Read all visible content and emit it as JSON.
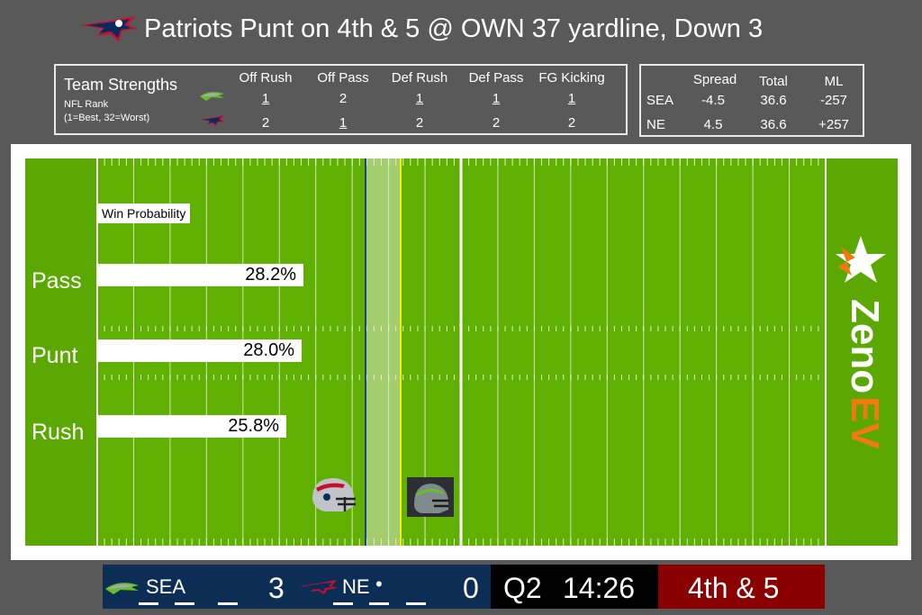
{
  "header": {
    "title": "Patriots Punt on 4th & 5 @ OWN 37 yardline, Down 3",
    "logo_icon": "patriots-logo"
  },
  "team_strengths": {
    "title": "Team Strengths",
    "subtitle_line1": "NFL Rank",
    "subtitle_line2": "(1=Best, 32=Worst)",
    "columns": [
      "Off Rush",
      "Off Pass",
      "Def Rush",
      "Def Pass",
      "FG Kicking"
    ],
    "rows": [
      {
        "team_icon": "seahawks-logo",
        "values": [
          "1",
          "2",
          "1",
          "1",
          "1"
        ],
        "best": [
          true,
          false,
          true,
          true,
          true
        ]
      },
      {
        "team_icon": "patriots-logo",
        "values": [
          "2",
          "1",
          "2",
          "2",
          "2"
        ],
        "best": [
          false,
          true,
          false,
          false,
          false
        ]
      }
    ]
  },
  "betting": {
    "columns": [
      "Spread",
      "Total",
      "ML"
    ],
    "rows": [
      {
        "team": "SEA",
        "values": [
          "-4.5",
          "36.6",
          "-257"
        ]
      },
      {
        "team": "NE",
        "values": [
          "4.5",
          "36.6",
          "+257"
        ]
      }
    ]
  },
  "win_probability": {
    "label": "Win Probability",
    "plays": [
      {
        "name": "Pass",
        "value": 28.2,
        "display": "28.2%"
      },
      {
        "name": "Punt",
        "value": 28.0,
        "display": "28.0%"
      },
      {
        "name": "Rush",
        "value": 25.8,
        "display": "25.8%"
      }
    ]
  },
  "field": {
    "colors": {
      "turf": "#5fb001",
      "line_of_scrimmage": "#1a3fa0",
      "first_down": "#f5f500",
      "endzone": "#5aa801"
    },
    "brand": {
      "text_line1": "Zeno",
      "text_line2": "EV",
      "accent": "#f07a10"
    }
  },
  "scoreboard": {
    "away_team": "SEA",
    "away_score": "3",
    "home_team": "NE",
    "home_score": "0",
    "quarter": "Q2",
    "clock": "14:26",
    "down_distance": "4th & 5",
    "possession_marker": "•",
    "colors": {
      "away": "#0c2e55",
      "clock": "#000000",
      "down": "#8a0000"
    }
  }
}
